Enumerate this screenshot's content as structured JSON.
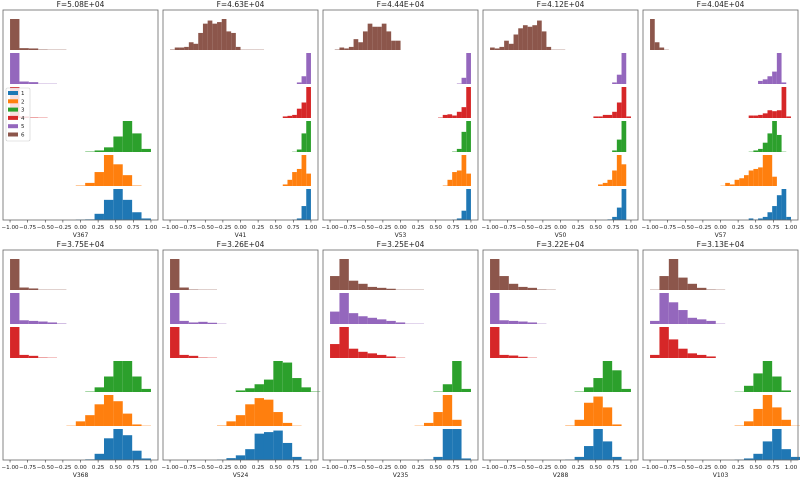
{
  "colors": {
    "1": "#1f77b4",
    "2": "#ff7f0e",
    "3": "#2ca02c",
    "4": "#d62728",
    "5": "#9467bd",
    "6": "#8c564b"
  },
  "legend": {
    "entries": [
      "1",
      "2",
      "3",
      "4",
      "5",
      "6"
    ],
    "placement": "left, panel 1"
  },
  "chart_data": [
    {
      "type": "bar",
      "title": "F=5.08E+04",
      "xlabel": "V367",
      "xlim": [
        -1.1,
        1.1
      ],
      "xticks": [
        "-1.00",
        "-0.75",
        "-0.50",
        "-0.25",
        "0.00",
        "0.25",
        "0.50",
        "0.75",
        "1.00"
      ],
      "histograms": [
        {
          "group": "1",
          "start": -0.067,
          "bin_width": 0.1333,
          "counts": [
            0.01,
            0.03,
            0.2,
            0.65,
            1,
            0.65,
            0.25,
            0.05
          ]
        },
        {
          "group": "2",
          "start": -0.067,
          "bin_width": 0.1333,
          "counts": [
            0.03,
            0.1,
            0.45,
            1,
            0.7,
            0.35,
            0.03
          ]
        },
        {
          "group": "3",
          "start": 0.067,
          "bin_width": 0.1333,
          "counts": [
            0.03,
            0.05,
            0.15,
            0.5,
            1,
            0.6,
            0.1
          ]
        },
        {
          "group": "4",
          "start": -1,
          "bin_width": 0.1333,
          "counts": [
            1,
            0.05,
            0.03,
            0.02
          ]
        },
        {
          "group": "5",
          "start": -1,
          "bin_width": 0.1333,
          "counts": [
            1,
            0.08,
            0.06,
            0.02,
            0.01
          ]
        },
        {
          "group": "6",
          "start": -1,
          "bin_width": 0.1333,
          "counts": [
            1,
            0.06,
            0.05,
            0.03,
            0.01,
            0.01
          ]
        }
      ]
    },
    {
      "type": "bar",
      "title": "F=4.63E+04",
      "xlabel": "V41",
      "xlim": [
        -1.1,
        1.1
      ],
      "xticks": [
        "-1.00",
        "-0.75",
        "-0.50",
        "-0.25",
        "0.00",
        "0.25",
        "0.50",
        "0.75",
        "1.00"
      ],
      "histograms": [
        {
          "group": "1",
          "start": 0.733,
          "bin_width": 0.0667,
          "counts": [
            0.02,
            0.05,
            0.45,
            1
          ]
        },
        {
          "group": "2",
          "start": 0.6,
          "bin_width": 0.0667,
          "counts": [
            0.05,
            0.2,
            0.45,
            0.55,
            1,
            0.4
          ]
        },
        {
          "group": "3",
          "start": 0.733,
          "bin_width": 0.0667,
          "counts": [
            0.02,
            0.08,
            0.6,
            1
          ]
        },
        {
          "group": "4",
          "start": 0.6,
          "bin_width": 0.0667,
          "counts": [
            0.05,
            0.07,
            0.1,
            0.3,
            0.5,
            1
          ]
        },
        {
          "group": "5",
          "start": 0.8,
          "bin_width": 0.0667,
          "counts": [
            0.05,
            0.25,
            1
          ]
        },
        {
          "group": "6",
          "start": -1,
          "bin_width": 0.0667,
          "counts": [
            0.03,
            0.08,
            0.08,
            0.1,
            0.25,
            0.2,
            0.55,
            0.85,
            0.95,
            0.85,
            0.9,
            1,
            0.6,
            0.55,
            0.1,
            0.01,
            0.01,
            0.01,
            0.01,
            0.01
          ]
        }
      ]
    },
    {
      "type": "bar",
      "title": "F=4.44E+04",
      "xlabel": "V53",
      "xlim": [
        -1.1,
        1.1
      ],
      "xticks": [
        "-1.00",
        "-0.75",
        "-0.50",
        "-0.25",
        "0.00",
        "0.25",
        "0.50",
        "0.75",
        "1.00"
      ],
      "histograms": [
        {
          "group": "1",
          "start": 0.733,
          "bin_width": 0.0667,
          "counts": [
            0.02,
            0.05,
            0.3,
            1
          ]
        },
        {
          "group": "2",
          "start": 0.6,
          "bin_width": 0.0667,
          "counts": [
            0.03,
            0.2,
            0.45,
            0.5,
            1,
            0.4
          ]
        },
        {
          "group": "3",
          "start": 0.733,
          "bin_width": 0.0667,
          "counts": [
            0.03,
            0.1,
            0.65,
            1
          ]
        },
        {
          "group": "4",
          "start": 0.533,
          "bin_width": 0.0667,
          "counts": [
            0.03,
            0.1,
            0.12,
            0.08,
            0.2,
            0.35,
            1
          ]
        },
        {
          "group": "5",
          "start": 0.8,
          "bin_width": 0.0667,
          "counts": [
            0.03,
            0.2,
            1
          ]
        },
        {
          "group": "6",
          "start": -0.933,
          "bin_width": 0.0667,
          "counts": [
            0.03,
            0.08,
            0.05,
            0.1,
            0.35,
            0.25,
            0.6,
            0.85,
            0.75,
            0.75,
            0.85,
            0.6,
            0.3,
            0.3
          ]
        }
      ]
    },
    {
      "type": "bar",
      "title": "F=4.12E+04",
      "xlabel": "V50",
      "xlim": [
        -1.1,
        1.1
      ],
      "xticks": [
        "-1.00",
        "-0.75",
        "-0.50",
        "-0.25",
        "0.00",
        "0.25",
        "0.50",
        "0.75",
        "1.00"
      ],
      "histograms": [
        {
          "group": "1",
          "start": 0.667,
          "bin_width": 0.0667,
          "counts": [
            0.03,
            0.1,
            0.4,
            1
          ]
        },
        {
          "group": "2",
          "start": 0.533,
          "bin_width": 0.0667,
          "counts": [
            0.05,
            0.1,
            0.2,
            0.5,
            1,
            0.7
          ]
        },
        {
          "group": "3",
          "start": 0.733,
          "bin_width": 0.0667,
          "counts": [
            0.05,
            0.4,
            1
          ]
        },
        {
          "group": "4",
          "start": 0.467,
          "bin_width": 0.0667,
          "counts": [
            0.05,
            0.05,
            0.1,
            0.1,
            0.2,
            0.5,
            1,
            0.05
          ]
        },
        {
          "group": "5",
          "start": 0.733,
          "bin_width": 0.0667,
          "counts": [
            0.05,
            0.3,
            1
          ]
        },
        {
          "group": "6",
          "start": -1,
          "bin_width": 0.0667,
          "counts": [
            0.08,
            0.05,
            0.1,
            0.3,
            0.2,
            0.5,
            0.7,
            0.8,
            0.75,
            0.8,
            0.95,
            0.6,
            0.1,
            0.02,
            0.01,
            0.01
          ]
        }
      ]
    },
    {
      "type": "bar",
      "title": "F=4.04E+04",
      "xlabel": "V57",
      "xlim": [
        -1.1,
        1.1
      ],
      "xticks": [
        "-1.00",
        "-0.75",
        "-0.50",
        "-0.25",
        "0.00",
        "0.25",
        "0.50",
        "0.75",
        "1.00"
      ],
      "histograms": [
        {
          "group": "1",
          "start": 0.4,
          "bin_width": 0.0667,
          "counts": [
            0.05,
            0.02,
            0.05,
            0.1,
            0.25,
            0.45,
            0.8,
            1,
            0.1
          ]
        },
        {
          "group": "2",
          "start": 0.0,
          "bin_width": 0.0667,
          "counts": [
            0.01,
            0.1,
            0.05,
            0.2,
            0.25,
            0.35,
            0.5,
            0.55,
            0.6,
            1,
            1,
            0.3
          ]
        },
        {
          "group": "3",
          "start": 0.4,
          "bin_width": 0.0667,
          "counts": [
            0.02,
            0.05,
            0.1,
            0.3,
            0.6,
            1,
            0.55,
            0.02
          ]
        },
        {
          "group": "4",
          "start": 0.4,
          "bin_width": 0.0667,
          "counts": [
            0.08,
            0.08,
            0.1,
            0.15,
            0.25,
            0.22,
            0.25,
            1,
            0.05
          ]
        },
        {
          "group": "5",
          "start": 0.533,
          "bin_width": 0.0667,
          "counts": [
            0.1,
            0.15,
            0.25,
            0.4,
            1,
            0.05
          ]
        },
        {
          "group": "6",
          "start": -1,
          "bin_width": 0.0667,
          "counts": [
            1,
            0.25,
            0.08,
            0.01
          ]
        }
      ]
    },
    {
      "type": "bar",
      "title": "F=3.75E+04",
      "xlabel": "V368",
      "xlim": [
        -1.1,
        1.1
      ],
      "xticks": [
        "-1.00",
        "-0.75",
        "-0.50",
        "-0.25",
        "0.00",
        "0.25",
        "0.50",
        "0.75",
        "1.00"
      ],
      "histograms": [
        {
          "group": "1",
          "start": 0.067,
          "bin_width": 0.1333,
          "counts": [
            0.03,
            0.2,
            0.7,
            1,
            0.8,
            0.3,
            0.05
          ]
        },
        {
          "group": "2",
          "start": -0.2,
          "bin_width": 0.1333,
          "counts": [
            0.02,
            0.15,
            0.35,
            0.7,
            1,
            0.8,
            0.4,
            0.05,
            0.01
          ]
        },
        {
          "group": "3",
          "start": 0.067,
          "bin_width": 0.1333,
          "counts": [
            0.03,
            0.15,
            0.5,
            1,
            1,
            0.5,
            0.1
          ]
        },
        {
          "group": "4",
          "start": -1,
          "bin_width": 0.1333,
          "counts": [
            1,
            0.1,
            0.07,
            0.03,
            0.01
          ]
        },
        {
          "group": "5",
          "start": -1,
          "bin_width": 0.1333,
          "counts": [
            1,
            0.12,
            0.1,
            0.08,
            0.05,
            0.03
          ]
        },
        {
          "group": "6",
          "start": -1,
          "bin_width": 0.1333,
          "counts": [
            1,
            0.08,
            0.05,
            0.02,
            0.01,
            0.01
          ]
        }
      ]
    },
    {
      "type": "bar",
      "title": "F=3.26E+04",
      "xlabel": "V524",
      "xlim": [
        -1.1,
        1.1
      ],
      "xticks": [
        "-1.00",
        "-0.75",
        "-0.50",
        "-0.25",
        "0.00",
        "0.25",
        "0.50",
        "0.75",
        "1.00"
      ],
      "histograms": [
        {
          "group": "1",
          "start": -0.333,
          "bin_width": 0.1333,
          "counts": [
            0.01,
            0.06,
            0.15,
            0.35,
            0.85,
            0.9,
            0.95,
            0.55,
            0.1,
            0.02
          ]
        },
        {
          "group": "2",
          "start": -0.333,
          "bin_width": 0.1333,
          "counts": [
            0.03,
            0.15,
            0.35,
            0.7,
            0.9,
            0.85,
            0.45,
            0.1,
            0.02
          ]
        },
        {
          "group": "3",
          "start": -0.067,
          "bin_width": 0.1333,
          "counts": [
            0.05,
            0.12,
            0.25,
            0.4,
            1,
            0.95,
            0.45,
            0.15,
            0.03
          ]
        },
        {
          "group": "4",
          "start": -1,
          "bin_width": 0.1333,
          "counts": [
            1,
            0.1,
            0.07,
            0.03,
            0.01
          ]
        },
        {
          "group": "5",
          "start": -1,
          "bin_width": 0.1333,
          "counts": [
            1,
            0.1,
            0.05,
            0.07,
            0.04,
            0.02
          ]
        },
        {
          "group": "6",
          "start": -1,
          "bin_width": 0.1333,
          "counts": [
            1,
            0.08,
            0.03,
            0.02,
            0.01
          ]
        }
      ]
    },
    {
      "type": "bar",
      "title": "F=3.25E+04",
      "xlabel": "V235",
      "xlim": [
        -1.1,
        1.1
      ],
      "xticks": [
        "-1.00",
        "-0.75",
        "-0.50",
        "-0.25",
        "0.00",
        "0.25",
        "0.50",
        "0.75",
        "1.00"
      ],
      "histograms": [
        {
          "group": "1",
          "start": 0.333,
          "bin_width": 0.1333,
          "counts": [
            0.02,
            0.1,
            1,
            1,
            0.05
          ]
        },
        {
          "group": "2",
          "start": 0.2,
          "bin_width": 0.1333,
          "counts": [
            0.02,
            0.1,
            0.45,
            1,
            0.2
          ]
        },
        {
          "group": "3",
          "start": 0.467,
          "bin_width": 0.1333,
          "counts": [
            0.03,
            0.25,
            1,
            0.1
          ]
        },
        {
          "group": "4",
          "start": -1,
          "bin_width": 0.1333,
          "counts": [
            0.45,
            1,
            0.3,
            0.2,
            0.15,
            0.1,
            0.05,
            0.02
          ]
        },
        {
          "group": "5",
          "start": -1,
          "bin_width": 0.1333,
          "counts": [
            0.4,
            1,
            0.35,
            0.25,
            0.2,
            0.15,
            0.1,
            0.05,
            0.02,
            0.01
          ]
        },
        {
          "group": "6",
          "start": -1,
          "bin_width": 0.1333,
          "counts": [
            0.45,
            1,
            0.3,
            0.2,
            0.1,
            0.07,
            0.04,
            0.02,
            0.01,
            0.01
          ]
        }
      ]
    },
    {
      "type": "bar",
      "title": "F=3.22E+04",
      "xlabel": "V288",
      "xlim": [
        -1.1,
        1.1
      ],
      "xticks": [
        "-1.00",
        "-0.75",
        "-0.50",
        "-0.25",
        "0.00",
        "0.25",
        "0.50",
        "0.75",
        "1.00"
      ],
      "histograms": [
        {
          "group": "1",
          "start": 0.067,
          "bin_width": 0.1333,
          "counts": [
            0.02,
            0.1,
            0.45,
            1,
            0.6,
            0.1
          ]
        },
        {
          "group": "2",
          "start": 0.067,
          "bin_width": 0.1333,
          "counts": [
            0.03,
            0.2,
            0.75,
            0.95,
            0.6,
            0.05
          ]
        },
        {
          "group": "3",
          "start": 0.2,
          "bin_width": 0.1333,
          "counts": [
            0.03,
            0.15,
            0.45,
            1,
            0.7,
            0.1
          ]
        },
        {
          "group": "4",
          "start": -1,
          "bin_width": 0.1333,
          "counts": [
            1,
            0.1,
            0.08,
            0.04,
            0.02
          ]
        },
        {
          "group": "5",
          "start": -1,
          "bin_width": 0.1333,
          "counts": [
            1,
            0.12,
            0.1,
            0.08,
            0.05,
            0.01
          ]
        },
        {
          "group": "6",
          "start": -1,
          "bin_width": 0.1333,
          "counts": [
            1,
            0.45,
            0.2,
            0.1,
            0.07,
            0.03,
            0.01
          ]
        }
      ]
    },
    {
      "type": "bar",
      "title": "F=3.13E+04",
      "xlabel": "V103",
      "xlim": [
        -1.1,
        1.1
      ],
      "xticks": [
        "-1.00",
        "-0.75",
        "-0.50",
        "-0.25",
        "0.00",
        "0.25",
        "0.50",
        "0.75",
        "1.00"
      ],
      "histograms": [
        {
          "group": "1",
          "start": 0.2,
          "bin_width": 0.1333,
          "counts": [
            0.02,
            0.05,
            0.2,
            0.6,
            1,
            0.35,
            0.1
          ]
        },
        {
          "group": "2",
          "start": 0.2,
          "bin_width": 0.1333,
          "counts": [
            0.03,
            0.15,
            0.55,
            1,
            0.6,
            0.2,
            0.01
          ]
        },
        {
          "group": "3",
          "start": 0.2,
          "bin_width": 0.1333,
          "counts": [
            0.02,
            0.2,
            0.6,
            1,
            0.5,
            0.05
          ]
        },
        {
          "group": "4",
          "start": -1,
          "bin_width": 0.1333,
          "counts": [
            0.1,
            1,
            0.6,
            0.3,
            0.15,
            0.1,
            0.05
          ]
        },
        {
          "group": "5",
          "start": -1,
          "bin_width": 0.1333,
          "counts": [
            0.1,
            1,
            0.7,
            0.45,
            0.2,
            0.15,
            0.1,
            0.02
          ]
        },
        {
          "group": "6",
          "start": -1,
          "bin_width": 0.1333,
          "counts": [
            0.02,
            0.45,
            1,
            0.4,
            0.2,
            0.07,
            0.03,
            0.02
          ]
        }
      ]
    }
  ]
}
